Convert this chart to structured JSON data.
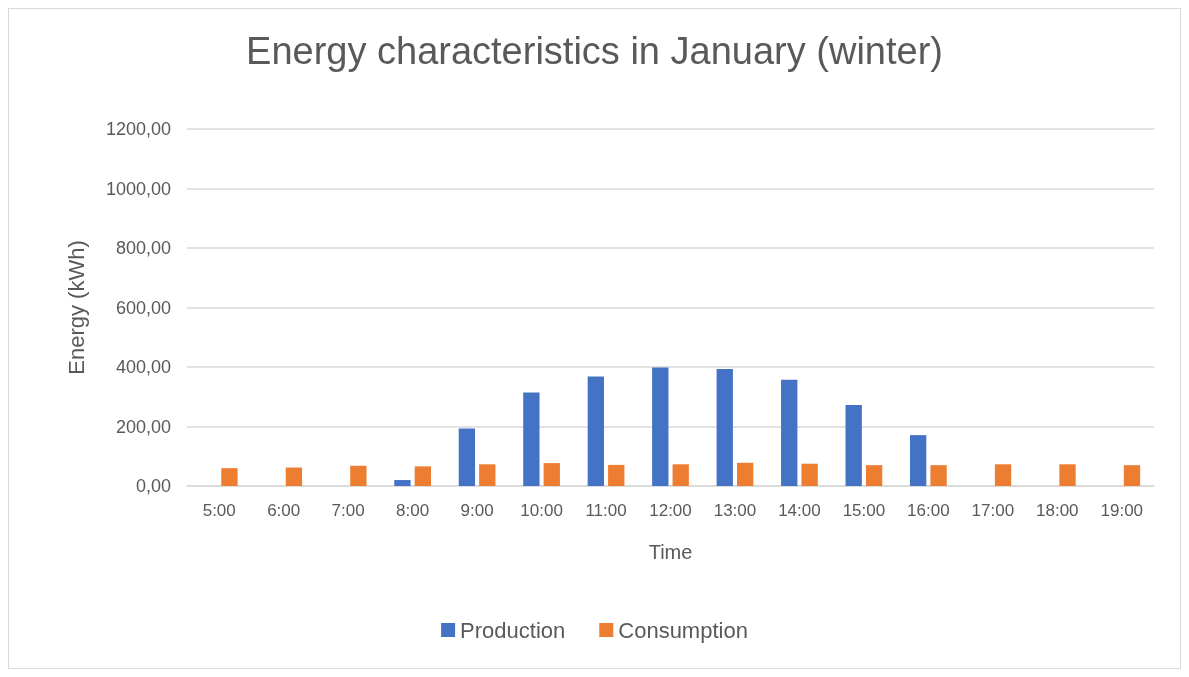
{
  "chart_data": {
    "type": "bar",
    "title": "Energy characteristics in January (winter)",
    "xlabel": "Time",
    "ylabel": "Energy (kWh)",
    "categories": [
      "5:00",
      "6:00",
      "7:00",
      "8:00",
      "9:00",
      "10:00",
      "11:00",
      "12:00",
      "13:00",
      "14:00",
      "15:00",
      "16:00",
      "17:00",
      "18:00",
      "19:00"
    ],
    "series": [
      {
        "name": "Production",
        "color": "#4472c4",
        "values": [
          0,
          0,
          0,
          20,
          193,
          314,
          368,
          398,
          393,
          357,
          272,
          171,
          0,
          0,
          0
        ]
      },
      {
        "name": "Consumption",
        "color": "#ed7d31",
        "values": [
          60,
          62,
          68,
          66,
          73,
          77,
          71,
          73,
          78,
          75,
          70,
          70,
          73,
          73,
          70
        ]
      }
    ],
    "ylim": [
      0,
      1200
    ],
    "yticks": [
      {
        "value": 0,
        "label": "0,00"
      },
      {
        "value": 200,
        "label": "200,00"
      },
      {
        "value": 400,
        "label": "400,00"
      },
      {
        "value": 600,
        "label": "600,00"
      },
      {
        "value": 800,
        "label": "800,00"
      },
      {
        "value": 1000,
        "label": "1000,00"
      },
      {
        "value": 1200,
        "label": "1200,00"
      }
    ],
    "grid": "y",
    "legend": "bottom"
  }
}
